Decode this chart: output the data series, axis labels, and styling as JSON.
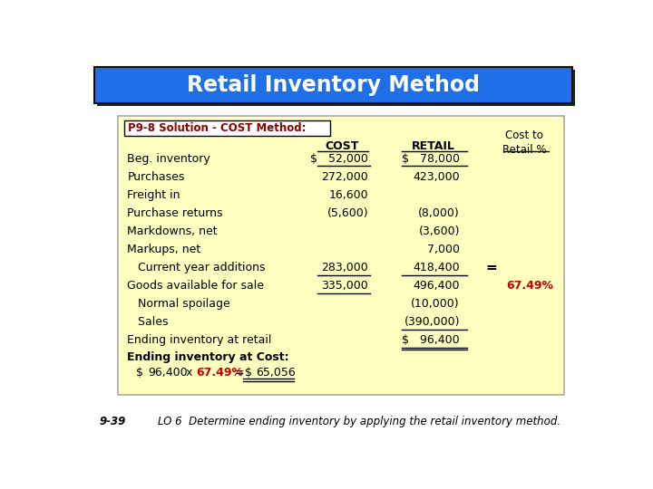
{
  "title": "Retail Inventory Method",
  "title_bg": "#1E6FE8",
  "title_color": "white",
  "subtitle": "P9-8 Solution - COST Method:",
  "subtitle_color": "#8B0000",
  "table_bg": "#FFFFC0",
  "rows": [
    {
      "label": "Beg. inventory",
      "cost": "$   52,000",
      "retail": "$   78,000",
      "cr": "",
      "bold": false,
      "underline_cost": true,
      "underline_retail": true
    },
    {
      "label": "Purchases",
      "cost": "272,000",
      "retail": "423,000",
      "cr": "",
      "bold": false,
      "underline_cost": false,
      "underline_retail": false
    },
    {
      "label": "Freight in",
      "cost": "16,600",
      "retail": "",
      "cr": "",
      "bold": false,
      "underline_cost": false,
      "underline_retail": false
    },
    {
      "label": "Purchase returns",
      "cost": "(5,600)",
      "retail": "(8,000)",
      "cr": "",
      "bold": false,
      "underline_cost": false,
      "underline_retail": false
    },
    {
      "label": "Markdowns, net",
      "cost": "",
      "retail": "(3,600)",
      "cr": "",
      "bold": false,
      "underline_cost": false,
      "underline_retail": false
    },
    {
      "label": "Markups, net",
      "cost": "",
      "retail": "7,000",
      "cr": "",
      "bold": false,
      "underline_cost": false,
      "underline_retail": false
    },
    {
      "label": "   Current year additions",
      "cost": "283,000",
      "retail": "418,400",
      "cr": "=",
      "bold": false,
      "underline_cost": true,
      "underline_retail": true
    },
    {
      "label": "Goods available for sale",
      "cost": "335,000",
      "retail": "496,400",
      "cr": "67.49%",
      "bold": false,
      "underline_cost": true,
      "underline_retail": false
    },
    {
      "label": "   Normal spoilage",
      "cost": "",
      "retail": "(10,000)",
      "cr": "",
      "bold": false,
      "underline_cost": false,
      "underline_retail": false
    },
    {
      "label": "   Sales",
      "cost": "",
      "retail": "(390,000)",
      "cr": "",
      "bold": false,
      "underline_cost": false,
      "underline_retail": true
    },
    {
      "label": "Ending inventory at retail",
      "cost": "",
      "retail": "$   96,400",
      "cr": "",
      "bold": false,
      "underline_cost": false,
      "underline_retail": true
    }
  ],
  "footer": "9-39",
  "footer_lo": "LO 6  Determine ending inventory by applying the retail inventory method.",
  "cr_color": "#CC0000"
}
